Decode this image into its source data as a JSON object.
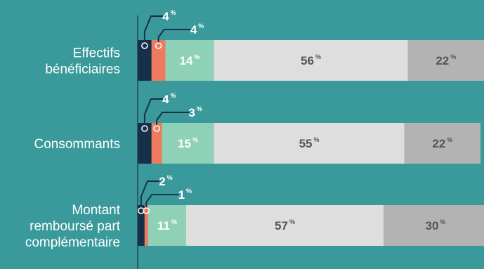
{
  "colors": {
    "background": "#3a9a9b",
    "axis": "#2b5d60",
    "navy": "#17304a",
    "coral": "#ee7b5e",
    "mint": "#8fd1b6",
    "light_gray": "#dedede",
    "dark_gray": "#b3b3b3"
  },
  "chart_data": {
    "type": "bar",
    "orientation": "horizontal",
    "stacked": true,
    "unit": "%",
    "categories": [
      [
        "Effectifs",
        "bénéficiaires"
      ],
      [
        "Consommants"
      ],
      [
        "Montant",
        "remboursé part",
        "complémentaire"
      ]
    ],
    "series": [
      {
        "color": "#17304a",
        "values": [
          4,
          4,
          2
        ],
        "labels": [
          "4",
          "4",
          "2"
        ]
      },
      {
        "color": "#ee7b5e",
        "values": [
          4,
          3,
          1
        ],
        "labels": [
          "4",
          "3",
          "1"
        ]
      },
      {
        "color": "#8fd1b6",
        "values": [
          14,
          15,
          11
        ],
        "labels": [
          "14",
          "15",
          "11"
        ]
      },
      {
        "color": "#dedede",
        "values": [
          56,
          55,
          57
        ],
        "labels": [
          "56",
          "55",
          "57"
        ]
      },
      {
        "color": "#b3b3b3",
        "values": [
          22,
          22,
          30
        ],
        "labels": [
          "22",
          "22",
          "30"
        ]
      }
    ],
    "callout_series": [
      0,
      1
    ],
    "xlim": [
      0,
      100
    ],
    "legend": "none",
    "grid": false
  }
}
